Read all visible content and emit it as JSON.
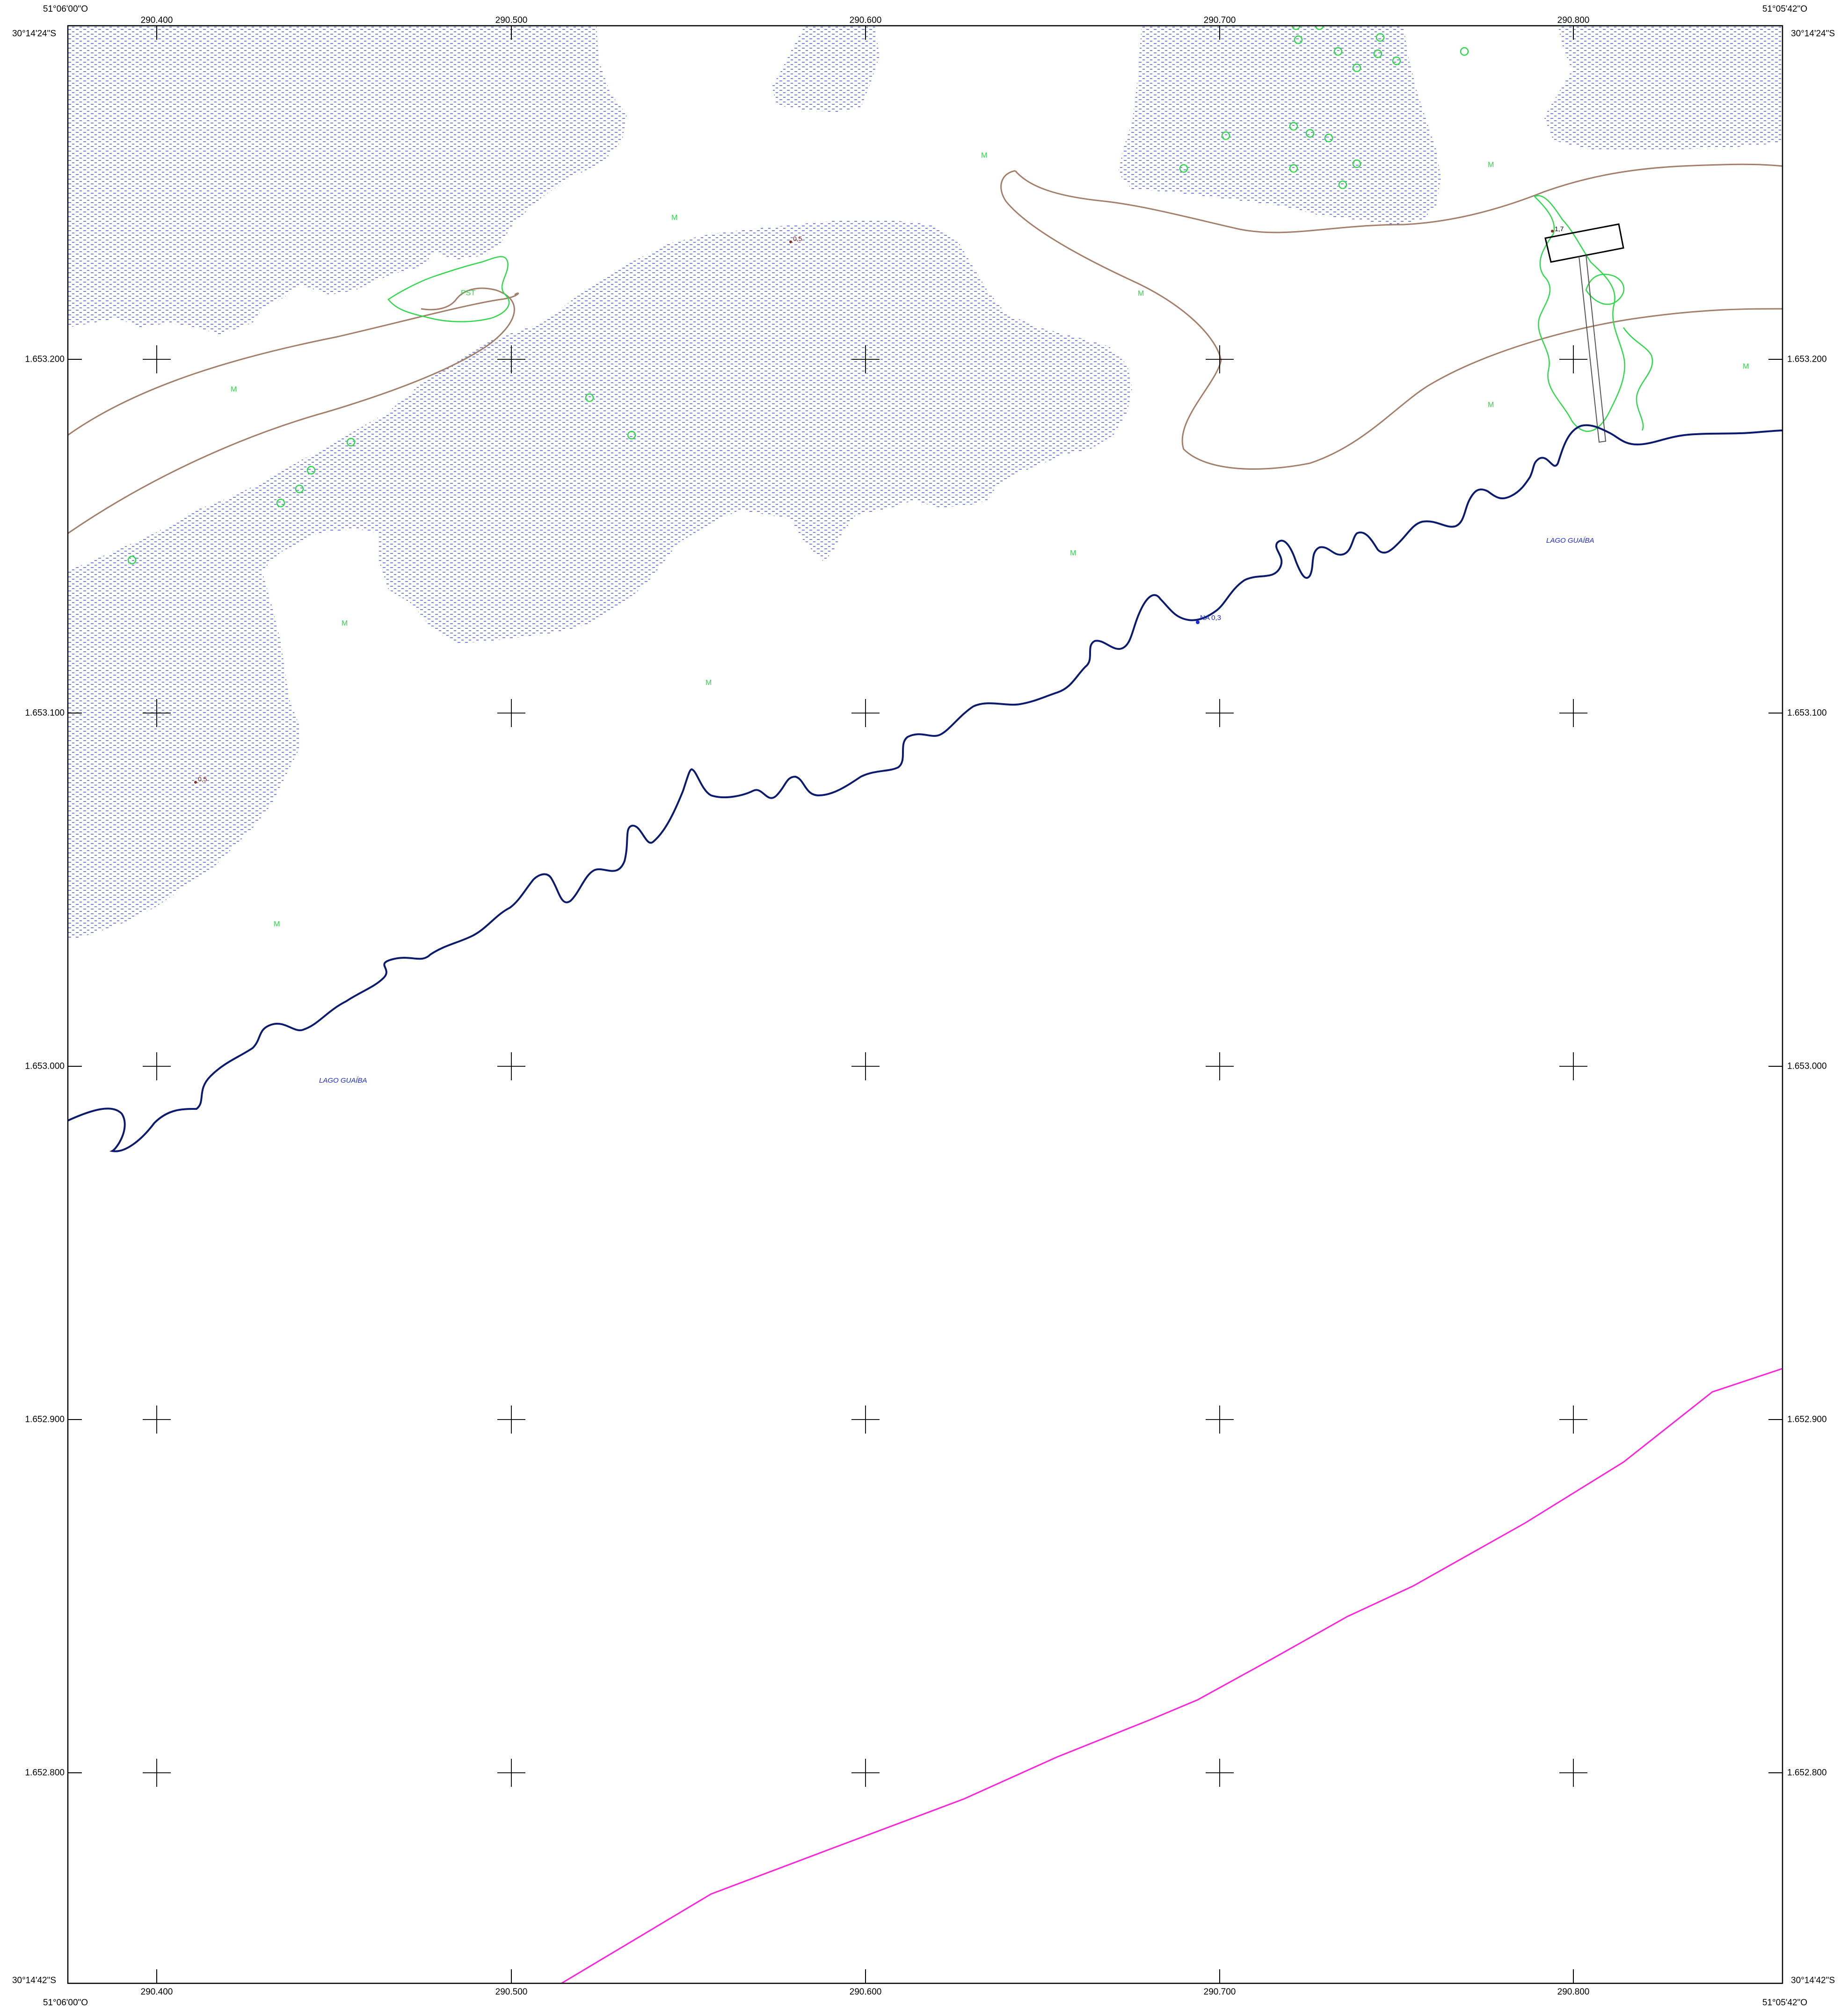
{
  "corner_coords": {
    "top_left_lon": "51°06'00\"O",
    "top_right_lon": "51°05'42\"O",
    "bottom_left_lon": "51°06'00\"O",
    "bottom_right_lon": "51°05'42\"O",
    "top_left_lat": "30°14'24\"S",
    "top_right_lat": "30°14'24\"S",
    "bottom_left_lat": "30°14'42\"S",
    "bottom_right_lat": "30°14'42\"S"
  },
  "easting_labels": [
    "290.400",
    "290.500",
    "290.600",
    "290.700",
    "290.800"
  ],
  "northing_labels": [
    "1.653.200",
    "1.653.100",
    "1.653.000",
    "1.652.900",
    "1.652.800"
  ],
  "map_labels": {
    "lake_1": "LAGO GUAÍBA",
    "lake_2": "LAGO GUAÍBA",
    "water_level": "NA 0,3",
    "spot_height_1": "0,5",
    "spot_height_2": "0,5",
    "spot_height_3": "1,7",
    "pst": "PST",
    "marsh_symbol": "M"
  },
  "colors": {
    "shoreline": "#0a1a6e",
    "marsh_hatch": "#2a3fc8",
    "contour": "#a37e6a",
    "vegetation": "#2fd84a",
    "boundary": "#ff22dd",
    "frame": "#000000",
    "lake_label": "#1a2ad8",
    "spot_height": "#8a2a20"
  },
  "icons": {
    "grid_cross": "plus-cross-icon",
    "marsh": "marsh-m-symbol",
    "tree": "tree-circle-icon",
    "building": "building-outline-icon"
  }
}
